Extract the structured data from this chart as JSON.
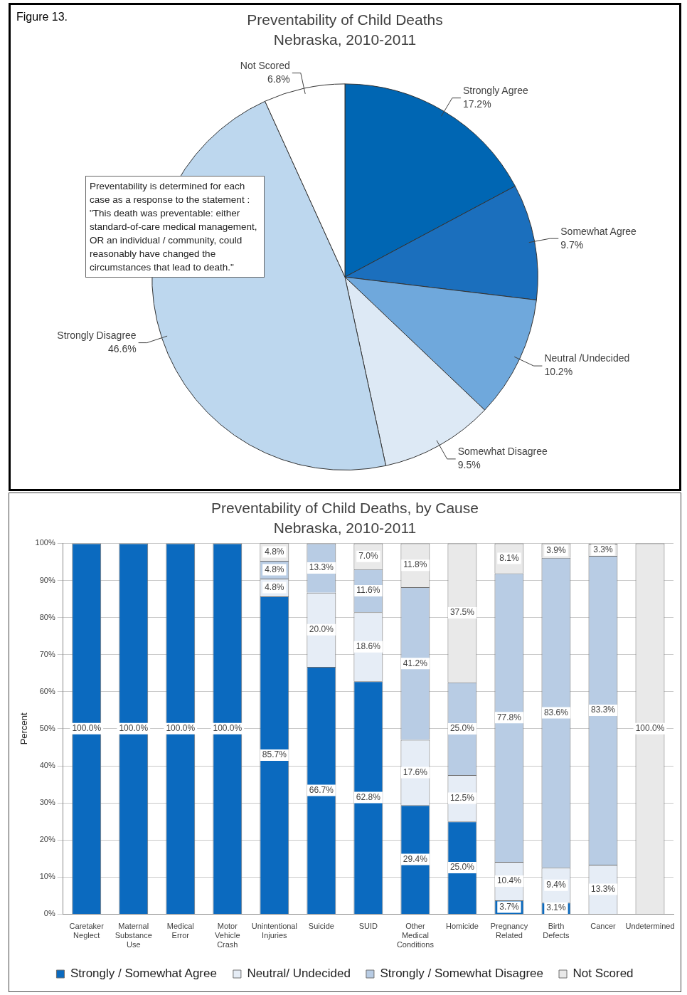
{
  "chart_data": [
    {
      "type": "pie",
      "title": "Preventability of Child Deaths",
      "subtitle": "Nebraska, 2010-2011",
      "categories": [
        "Strongly Agree",
        "Somewhat Agree",
        "Neutral /Undecided",
        "Somewhat Disagree",
        "Strongly Disagree",
        "Not Scored"
      ],
      "values": [
        17.2,
        9.7,
        10.2,
        9.5,
        46.6,
        6.8
      ],
      "value_labels": [
        "17.2%",
        "9.7%",
        "10.2%",
        "9.5%",
        "46.6%",
        "6.8%"
      ],
      "colors": [
        "#0066b3",
        "#1b6fbd",
        "#6fa8dc",
        "#dde9f5",
        "#bdd7ee",
        "#ffffff"
      ],
      "legend": false,
      "annotations": [
        "Figure 13.",
        "Preventability is determined for each case as a response to the statement : \"This death was preventable: either standard-of-care medical management, OR an individual / community, could reasonably have changed the circumstances that lead to death.\""
      ]
    },
    {
      "type": "bar",
      "title": "Preventability of Child Deaths, by Cause",
      "subtitle": "Nebraska, 2010-2011",
      "ylabel": "Percent",
      "categories": [
        "Caretaker Neglect",
        "Maternal Substance Use",
        "Medical Error",
        "Motor Vehicle Crash",
        "Unintentional Injuries",
        "Suicide",
        "SUID",
        "Other Medical Conditions",
        "Homicide",
        "Pregnancy Related",
        "Birth Defects",
        "Cancer",
        "Undetermined"
      ],
      "stacked": true,
      "series": [
        {
          "name": "Strongly / Somewhat Agree",
          "color": "#0b6abf",
          "values": [
            100,
            100,
            100,
            100,
            85.7,
            66.7,
            62.8,
            29.4,
            25.0,
            3.7,
            3.1,
            null,
            null
          ],
          "value_labels": [
            "100.0%",
            "100.0%",
            "100.0%",
            "100.0%",
            "85.7%",
            "66.7%",
            "62.8%",
            "29.4%",
            "25.0%",
            "3.7%",
            "3.1%",
            null,
            null
          ]
        },
        {
          "name": "Neutral/ Undecided",
          "color": "#e6edf6",
          "values": [
            null,
            null,
            null,
            null,
            4.8,
            20.0,
            18.6,
            17.6,
            12.5,
            10.4,
            9.4,
            13.3,
            null
          ],
          "value_labels": [
            null,
            null,
            null,
            null,
            "4.8%",
            "20.0%",
            "18.6%",
            "17.6%",
            "12.5%",
            "10.4%",
            "9.4%",
            "13.3%",
            null
          ]
        },
        {
          "name": "Strongly / Somewhat Disagree",
          "color": "#b8cce4",
          "values": [
            null,
            null,
            null,
            null,
            4.8,
            13.3,
            11.6,
            41.2,
            25.0,
            77.8,
            83.6,
            83.3,
            null
          ],
          "value_labels": [
            null,
            null,
            null,
            null,
            "4.8%",
            "13.3%",
            "11.6%",
            "41.2%",
            "25.0%",
            "77.8%",
            "83.6%",
            "83.3%",
            null
          ]
        },
        {
          "name": "Not Scored",
          "color": "#e9e9e9",
          "values": [
            null,
            null,
            null,
            null,
            4.8,
            null,
            7.0,
            11.8,
            37.5,
            8.1,
            3.9,
            3.3,
            100
          ],
          "value_labels": [
            null,
            null,
            null,
            null,
            "4.8%",
            null,
            "7.0%",
            "11.8%",
            "37.5%",
            "8.1%",
            "3.9%",
            "3.3%",
            "100.0%"
          ]
        }
      ],
      "ylim": [
        0,
        100
      ],
      "yticks": [
        {
          "value": 0,
          "label": "0%"
        },
        {
          "value": 10,
          "label": "10%"
        },
        {
          "value": 20,
          "label": "20%"
        },
        {
          "value": 30,
          "label": "30%"
        },
        {
          "value": 40,
          "label": "40%"
        },
        {
          "value": 50,
          "label": "50%"
        },
        {
          "value": 60,
          "label": "60%"
        },
        {
          "value": 70,
          "label": "70%"
        },
        {
          "value": 80,
          "label": "80%"
        },
        {
          "value": 90,
          "label": "90%"
        },
        {
          "value": 100,
          "label": "100%"
        }
      ],
      "grid": "y",
      "legend": "bottom"
    }
  ]
}
